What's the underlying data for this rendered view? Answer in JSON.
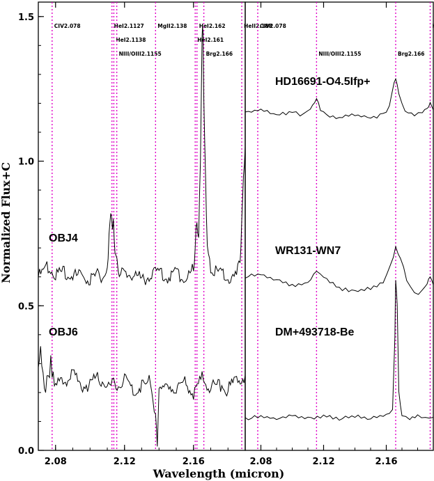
{
  "chart_data": [
    {
      "type": "line",
      "panel": "left",
      "xlabel": "Wavelength (micron)",
      "ylabel": "Normalized Flux+C",
      "xlim": [
        2.07,
        2.19
      ],
      "ylim": [
        0.0,
        1.55
      ],
      "x_ticks": [
        2.08,
        2.12,
        2.16
      ],
      "y_ticks": [
        0.0,
        0.5,
        1.0,
        1.5
      ],
      "y_tick_labels": [
        "0.0",
        "0.5",
        "1.0",
        "1.5"
      ],
      "x_tick_labels": [
        "2.08",
        "2.12",
        "2.16"
      ],
      "line_color": "#e000c8",
      "reference_lines": [
        {
          "x": 2.078,
          "label": "CIV2.078",
          "row": 0
        },
        {
          "x": 2.1127,
          "label": "HeI2.1127",
          "row": 0
        },
        {
          "x": 2.1138,
          "label": "HeI2.1138",
          "row": 1
        },
        {
          "x": 2.1155,
          "label": "NIII/OIII2.1155",
          "row": 2
        },
        {
          "x": 2.138,
          "label": "MgII2.138",
          "row": 0
        },
        {
          "x": 2.161,
          "label": "HeI2.161",
          "row": 1
        },
        {
          "x": 2.162,
          "label": "HeI2.162",
          "row": 0
        },
        {
          "x": 2.166,
          "label": "Brg2.166",
          "row": 2
        },
        {
          "x": 2.188,
          "label": "HeII2.188",
          "row": 0
        }
      ],
      "series": [
        {
          "name": "OBJ4",
          "x": [
            2.07,
            2.075,
            2.08,
            2.085,
            2.09,
            2.095,
            2.1,
            2.105,
            2.108,
            2.11,
            2.111,
            2.112,
            2.113,
            2.1135,
            2.114,
            2.115,
            2.117,
            2.12,
            2.125,
            2.13,
            2.135,
            2.14,
            2.145,
            2.15,
            2.155,
            2.158,
            2.16,
            2.161,
            2.162,
            2.163,
            2.164,
            2.165,
            2.1655,
            2.166,
            2.167,
            2.168,
            2.17,
            2.175,
            2.18,
            2.185,
            2.187,
            2.188,
            2.189,
            2.19
          ],
          "y": [
            0.6,
            0.63,
            0.61,
            0.62,
            0.6,
            0.61,
            0.59,
            0.61,
            0.6,
            0.61,
            0.75,
            0.8,
            0.77,
            0.78,
            0.75,
            0.66,
            0.62,
            0.6,
            0.61,
            0.59,
            0.6,
            0.62,
            0.6,
            0.61,
            0.6,
            0.61,
            0.63,
            0.7,
            0.8,
            0.72,
            1.0,
            1.43,
            1.46,
            1.2,
            0.95,
            0.7,
            0.62,
            0.61,
            0.6,
            0.6,
            0.66,
            0.78,
            0.95,
            1.05
          ]
        },
        {
          "name": "OBJ6",
          "x": [
            2.07,
            2.072,
            2.075,
            2.078,
            2.08,
            2.085,
            2.09,
            2.095,
            2.1,
            2.105,
            2.11,
            2.115,
            2.12,
            2.125,
            2.13,
            2.135,
            2.138,
            2.139,
            2.14,
            2.145,
            2.15,
            2.155,
            2.16,
            2.165,
            2.17,
            2.175,
            2.18,
            2.185,
            2.19
          ],
          "y": [
            0.25,
            0.33,
            0.2,
            0.3,
            0.22,
            0.24,
            0.26,
            0.22,
            0.23,
            0.25,
            0.22,
            0.23,
            0.24,
            0.21,
            0.22,
            0.24,
            0.12,
            0.02,
            0.2,
            0.23,
            0.22,
            0.24,
            0.2,
            0.25,
            0.22,
            0.23,
            0.21,
            0.24,
            0.26
          ]
        }
      ]
    },
    {
      "type": "line",
      "panel": "right",
      "xlim": [
        2.07,
        2.19
      ],
      "ylim": [
        0.0,
        1.55
      ],
      "x_ticks": [
        2.08,
        2.12,
        2.16
      ],
      "x_tick_labels": [
        "2.08",
        "2.12",
        "2.16"
      ],
      "line_color": "#e000c8",
      "reference_lines": [
        {
          "x": 2.078,
          "label": "CIV2.078",
          "row": 0
        },
        {
          "x": 2.1155,
          "label": "NIII/OIII2.1155",
          "row": 2
        },
        {
          "x": 2.166,
          "label": "Brg2.166",
          "row": 2
        },
        {
          "x": 2.188,
          "label": "HeII2.188",
          "row": 0
        }
      ],
      "series": [
        {
          "name": "HD16691-O4.5Ifp+",
          "x": [
            2.07,
            2.08,
            2.09,
            2.1,
            2.105,
            2.11,
            2.113,
            2.1155,
            2.118,
            2.122,
            2.13,
            2.14,
            2.15,
            2.158,
            2.162,
            2.164,
            2.166,
            2.168,
            2.172,
            2.178,
            2.183,
            2.186,
            2.188,
            2.19,
            2.192
          ],
          "y": [
            1.17,
            1.18,
            1.16,
            1.17,
            1.16,
            1.17,
            1.19,
            1.22,
            1.18,
            1.16,
            1.15,
            1.16,
            1.15,
            1.16,
            1.19,
            1.25,
            1.29,
            1.23,
            1.17,
            1.16,
            1.17,
            1.18,
            1.2,
            1.18,
            1.16
          ]
        },
        {
          "name": "WR131-WN7",
          "x": [
            2.07,
            2.08,
            2.09,
            2.1,
            2.11,
            2.1155,
            2.12,
            2.13,
            2.14,
            2.15,
            2.158,
            2.163,
            2.166,
            2.169,
            2.173,
            2.178,
            2.183,
            2.186,
            2.188,
            2.19,
            2.2
          ],
          "y": [
            0.6,
            0.61,
            0.59,
            0.57,
            0.58,
            0.62,
            0.6,
            0.56,
            0.55,
            0.56,
            0.58,
            0.64,
            0.7,
            0.67,
            0.59,
            0.54,
            0.55,
            0.58,
            0.6,
            0.57,
            0.51
          ]
        },
        {
          "name": "DM+493718-Be",
          "x": [
            2.07,
            2.08,
            2.09,
            2.1,
            2.11,
            2.12,
            2.13,
            2.14,
            2.15,
            2.16,
            2.164,
            2.1655,
            2.166,
            2.167,
            2.168,
            2.17,
            2.175,
            2.18,
            2.185,
            2.19,
            2.2
          ],
          "y": [
            0.11,
            0.12,
            0.11,
            0.12,
            0.11,
            0.12,
            0.11,
            0.12,
            0.11,
            0.12,
            0.14,
            0.4,
            0.59,
            0.5,
            0.2,
            0.12,
            0.11,
            0.12,
            0.11,
            0.12,
            0.11
          ]
        }
      ]
    }
  ],
  "labels": {
    "left": [
      "OBJ4",
      "OBJ6"
    ],
    "right": [
      "HD16691-O4.5Ifp+",
      "WR131-WN7",
      "DM+493718-Be"
    ]
  }
}
